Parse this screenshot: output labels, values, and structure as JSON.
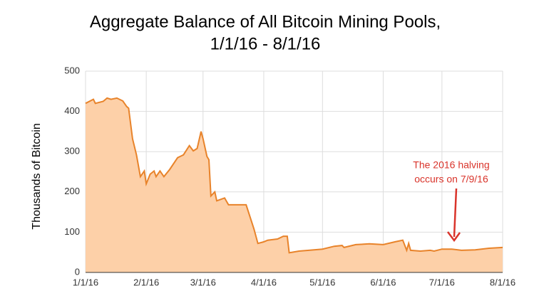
{
  "chart_data": {
    "type": "area",
    "title": [
      "Aggregate Balance of All Bitcoin Mining Pools,",
      "1/1/16 - 8/1/16"
    ],
    "ylabel": "Thousands of Bitcoin",
    "annotation": [
      "The 2016 halving",
      "occurs on 7/9/16"
    ],
    "annotation_color": "#d9342b",
    "color": "#e8832a",
    "fill": "#fdd0a8",
    "grid": true,
    "x": [
      "2016-01-01",
      "2016-01-05",
      "2016-01-06",
      "2016-01-10",
      "2016-01-12",
      "2016-01-14",
      "2016-01-17",
      "2016-01-20",
      "2016-01-22",
      "2016-01-23",
      "2016-01-25",
      "2016-01-27",
      "2016-01-29",
      "2016-01-31",
      "2016-02-01",
      "2016-02-03",
      "2016-02-05",
      "2016-02-06",
      "2016-02-08",
      "2016-02-10",
      "2016-02-13",
      "2016-02-17",
      "2016-02-20",
      "2016-02-23",
      "2016-02-25",
      "2016-02-27",
      "2016-02-29",
      "2016-03-01",
      "2016-03-03",
      "2016-03-04",
      "2016-03-05",
      "2016-03-07",
      "2016-03-08",
      "2016-03-12",
      "2016-03-14",
      "2016-03-23",
      "2016-03-27",
      "2016-03-29",
      "2016-04-01",
      "2016-04-03",
      "2016-04-08",
      "2016-04-11",
      "2016-04-13",
      "2016-04-14",
      "2016-04-19",
      "2016-04-24",
      "2016-05-01",
      "2016-05-07",
      "2016-05-11",
      "2016-05-12",
      "2016-05-18",
      "2016-05-25",
      "2016-06-01",
      "2016-06-07",
      "2016-06-11",
      "2016-06-13",
      "2016-06-14",
      "2016-06-15",
      "2016-06-20",
      "2016-06-25",
      "2016-06-27",
      "2016-07-01",
      "2016-07-06",
      "2016-07-11",
      "2016-07-18",
      "2016-07-25",
      "2016-08-01"
    ],
    "values": [
      420,
      430,
      420,
      425,
      433,
      430,
      433,
      426,
      412,
      408,
      332,
      292,
      238,
      252,
      220,
      244,
      252,
      238,
      252,
      238,
      256,
      285,
      292,
      315,
      302,
      308,
      350,
      332,
      288,
      280,
      190,
      200,
      178,
      185,
      168,
      168,
      108,
      72,
      76,
      80,
      83,
      90,
      90,
      49,
      53,
      55,
      58,
      65,
      67,
      62,
      69,
      71,
      69,
      76,
      80,
      55,
      72,
      55,
      53,
      55,
      53,
      58,
      58,
      55,
      56,
      60,
      62
    ],
    "xlim": [
      "2016-01-01",
      "2016-08-01"
    ],
    "xticks": [
      {
        "value": "2016-01-01",
        "label": "1/1/16"
      },
      {
        "value": "2016-02-01",
        "label": "2/1/16"
      },
      {
        "value": "2016-03-01",
        "label": "3/1/16"
      },
      {
        "value": "2016-04-01",
        "label": "4/1/16"
      },
      {
        "value": "2016-05-01",
        "label": "5/1/16"
      },
      {
        "value": "2016-06-01",
        "label": "6/1/16"
      },
      {
        "value": "2016-07-01",
        "label": "7/1/16"
      },
      {
        "value": "2016-08-01",
        "label": "8/1/16"
      }
    ],
    "ylim": [
      0,
      500
    ],
    "yticks": [
      0,
      100,
      200,
      300,
      400,
      500
    ]
  }
}
